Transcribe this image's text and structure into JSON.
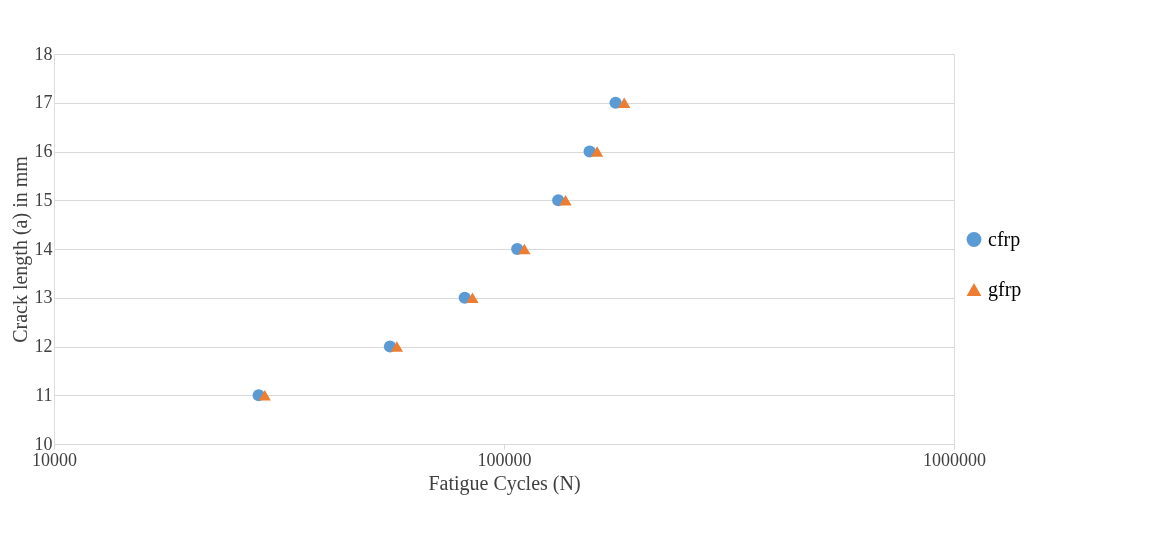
{
  "chart_data": {
    "type": "scatter",
    "xlabel": "Fatigue Cycles (N)",
    "ylabel": "Crack length (a) in mm",
    "log": "x",
    "xlim": [
      10000,
      1000000
    ],
    "xticks": [
      10000,
      100000,
      1000000
    ],
    "ylim": [
      10,
      18
    ],
    "yticks": [
      10,
      11,
      12,
      13,
      14,
      15,
      16,
      17,
      18
    ],
    "grid": "y",
    "legend": "right",
    "series": [
      {
        "name": "cfrp",
        "color": "#5b9bd5",
        "marker": "circle",
        "x": [
          28500,
          55800,
          81800,
          107000,
          132000,
          155000,
          177000
        ],
        "values": [
          11,
          12,
          13,
          14,
          15,
          16,
          17
        ]
      },
      {
        "name": "gfrp",
        "color": "#ed7d31",
        "marker": "triangle",
        "x": [
          29400,
          57800,
          85100,
          111000,
          137000,
          161000,
          185000
        ],
        "values": [
          11,
          12,
          13,
          14,
          15,
          16,
          17
        ]
      }
    ]
  }
}
